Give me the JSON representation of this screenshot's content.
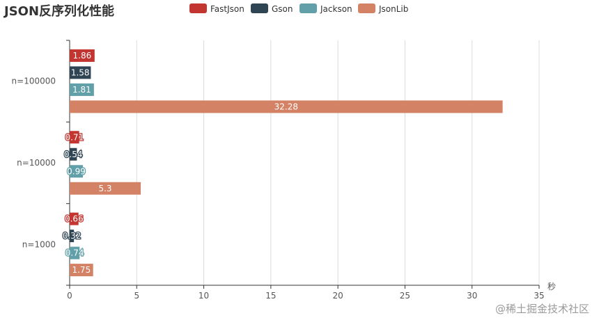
{
  "chart_data": {
    "type": "bar",
    "orientation": "horizontal",
    "title": "JSON反序列化性能",
    "categories": [
      "n=100000",
      "n=10000",
      "n=1000"
    ],
    "series": [
      {
        "name": "FastJson",
        "color": "#c23531",
        "values": [
          1.86,
          0.71,
          0.66
        ]
      },
      {
        "name": "Gson",
        "color": "#2f4554",
        "values": [
          1.58,
          0.54,
          0.32
        ]
      },
      {
        "name": "Jackson",
        "color": "#61a0a8",
        "values": [
          1.81,
          0.99,
          0.74
        ]
      },
      {
        "name": "JsonLib",
        "color": "#d48265",
        "values": [
          32.28,
          5.3,
          1.75
        ]
      }
    ],
    "xlabel": "秒",
    "ylabel": "",
    "xlim": [
      0,
      35
    ],
    "xticks": [
      0,
      5,
      10,
      15,
      20,
      25,
      30,
      35
    ],
    "grid": true,
    "legend_position": "top"
  },
  "watermark": "@稀土掘金技术社区"
}
